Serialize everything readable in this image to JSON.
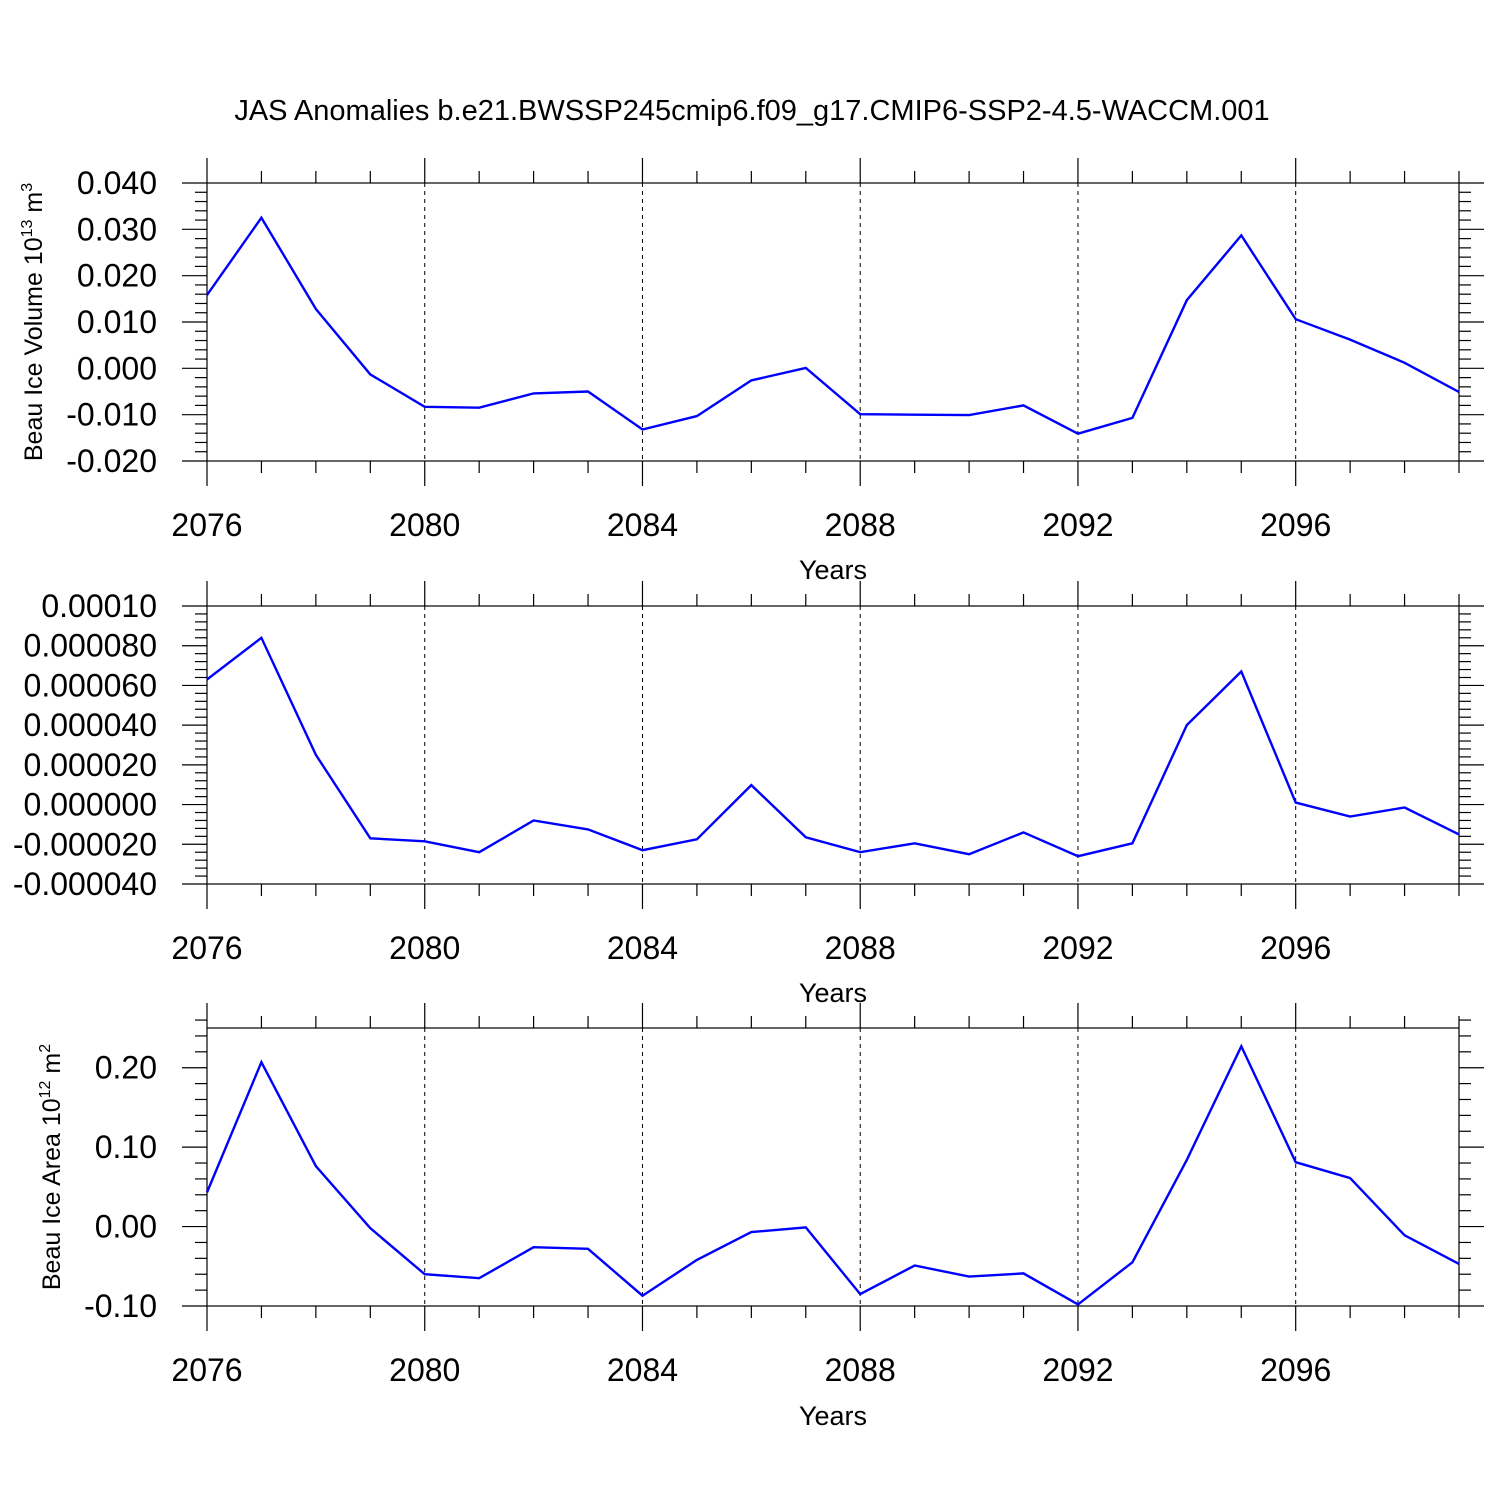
{
  "title": "JAS Anomalies b.e21.BWSSP245cmip6.f09_g17.CMIP6-SSP2-4.5-WACCM.001",
  "chart_data": [
    {
      "type": "line",
      "ylabel": {
        "main": "Beau Ice Volume 10",
        "exp": "13",
        "unit": " m",
        "unit_exp": "3"
      },
      "xlabel": "Years",
      "xlim": [
        2076,
        2099
      ],
      "ylim": [
        -0.02,
        0.04
      ],
      "y_ticks": [
        -0.02,
        -0.01,
        0.0,
        0.01,
        0.02,
        0.03,
        0.04
      ],
      "y_tick_labels": [
        "-0.020",
        "-0.010",
        "0.000",
        "0.010",
        "0.020",
        "0.030",
        "0.040"
      ],
      "y_minor_step": 0.002,
      "x_ticks": [
        2076,
        2080,
        2084,
        2088,
        2092,
        2096
      ],
      "x_tick_labels": [
        "2076",
        "2080",
        "2084",
        "2088",
        "2092",
        "2096"
      ],
      "grid": "vertical dashed at major x ticks",
      "color": "#0000ff",
      "x": [
        2076,
        2077,
        2078,
        2079,
        2080,
        2081,
        2082,
        2083,
        2084,
        2085,
        2086,
        2087,
        2088,
        2089,
        2090,
        2091,
        2092,
        2093,
        2094,
        2095,
        2096,
        2097,
        2098,
        2099
      ],
      "y": [
        0.0158,
        0.0325,
        0.0128,
        -0.0013,
        -0.0083,
        -0.0085,
        -0.0054,
        -0.005,
        -0.0132,
        -0.0103,
        -0.0026,
        0.0001,
        -0.0099,
        -0.01,
        -0.0101,
        -0.008,
        -0.0141,
        -0.0107,
        0.0147,
        0.0287,
        0.0106,
        0.0062,
        0.0012,
        -0.0051
      ]
    },
    {
      "type": "line",
      "xlabel": "Years",
      "xlim": [
        2076,
        2099
      ],
      "ylim": [
        -4e-05,
        0.0001
      ],
      "y_ticks": [
        -4e-05,
        -2e-05,
        0.0,
        2e-05,
        4e-05,
        6e-05,
        8e-05,
        0.0001
      ],
      "y_tick_labels": [
        "-0.000040",
        "-0.000020",
        "0.000000",
        "0.000020",
        "0.000040",
        "0.000060",
        "0.000080",
        "0.00010"
      ],
      "y_minor_step": 4e-06,
      "x_ticks": [
        2076,
        2080,
        2084,
        2088,
        2092,
        2096
      ],
      "x_tick_labels": [
        "2076",
        "2080",
        "2084",
        "2088",
        "2092",
        "2096"
      ],
      "grid": "vertical dashed at major x ticks",
      "color": "#0000ff",
      "x": [
        2076,
        2077,
        2078,
        2079,
        2080,
        2081,
        2082,
        2083,
        2084,
        2085,
        2086,
        2087,
        2088,
        2089,
        2090,
        2091,
        2092,
        2093,
        2094,
        2095,
        2096,
        2097,
        2098,
        2099
      ],
      "y": [
        6.3e-05,
        8.4e-05,
        2.5e-05,
        -1.7e-05,
        -1.85e-05,
        -2.4e-05,
        -8e-06,
        -1.25e-05,
        -2.3e-05,
        -1.75e-05,
        9.8e-06,
        -1.65e-05,
        -2.4e-05,
        -1.95e-05,
        -2.5e-05,
        -1.4e-05,
        -2.6e-05,
        -1.95e-05,
        4e-05,
        6.7e-05,
        1e-06,
        -6e-06,
        -1.5e-06,
        -1.5e-05
      ]
    },
    {
      "type": "line",
      "ylabel": {
        "main": "Beau Ice Area 10",
        "exp": "12",
        "unit": " m",
        "unit_exp": "2"
      },
      "xlabel": "Years",
      "xlim": [
        2076,
        2099
      ],
      "ylim": [
        -0.1,
        0.25
      ],
      "y_ticks": [
        -0.1,
        0.0,
        0.1,
        0.2
      ],
      "y_tick_labels": [
        "-0.10",
        "0.00",
        "0.10",
        "0.20"
      ],
      "y_minor_step": 0.02,
      "x_ticks": [
        2076,
        2080,
        2084,
        2088,
        2092,
        2096
      ],
      "x_tick_labels": [
        "2076",
        "2080",
        "2084",
        "2088",
        "2092",
        "2096"
      ],
      "grid": "vertical dashed at major x ticks",
      "color": "#0000ff",
      "x": [
        2076,
        2077,
        2078,
        2079,
        2080,
        2081,
        2082,
        2083,
        2084,
        2085,
        2086,
        2087,
        2088,
        2089,
        2090,
        2091,
        2092,
        2093,
        2094,
        2095,
        2096,
        2097,
        2098,
        2099
      ],
      "y": [
        0.043,
        0.207,
        0.076,
        -0.002,
        -0.06,
        -0.065,
        -0.026,
        -0.028,
        -0.087,
        -0.042,
        -0.007,
        -0.001,
        -0.085,
        -0.049,
        -0.063,
        -0.059,
        -0.098,
        -0.045,
        0.084,
        0.227,
        0.081,
        0.061,
        -0.011,
        -0.047
      ]
    }
  ]
}
